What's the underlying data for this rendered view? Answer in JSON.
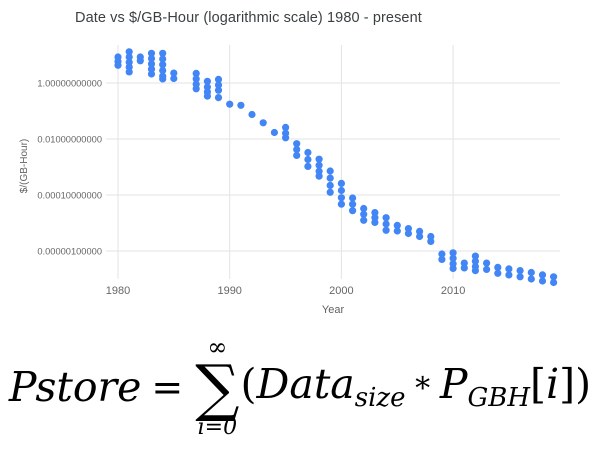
{
  "colors": {
    "background": "#ffffff",
    "title_text": "#3c4043",
    "axis_title_text": "#616161",
    "tick_text": "#666666",
    "gridline": "#e3e3e3",
    "point": "#4285f4"
  },
  "chart_data": {
    "type": "scatter",
    "title": "Date vs $/GB-Hour (logarithmic scale) 1980 - present",
    "xlabel": "Year",
    "ylabel": "$/(GB-Hour)",
    "y_scale": "log",
    "grid": true,
    "legend": "none",
    "xlim": [
      1979,
      2020
    ],
    "ylim": [
      7e-08,
      20
    ],
    "x_ticks": [
      1980,
      1990,
      2000,
      2010
    ],
    "x_tick_labels": [
      "1980",
      "1990",
      "2000",
      "2010"
    ],
    "y_ticks": [
      1,
      0.01,
      0.0001,
      1e-06
    ],
    "y_tick_labels": [
      "1.00000000000",
      "0.01000000000",
      "0.00010000000",
      "0.00000100000"
    ],
    "series": [
      {
        "name": "$/(GB-Hour)",
        "color": "#4285f4",
        "points": [
          {
            "year": 1980,
            "values": [
              8.5,
              5.9,
              4.3
            ]
          },
          {
            "year": 1981,
            "values": [
              13,
              8.5,
              5.5,
              3.7,
              2.5
            ]
          },
          {
            "year": 1982,
            "values": [
              8.5,
              6.2
            ]
          },
          {
            "year": 1983,
            "values": [
              11.5,
              7.5,
              4.8,
              3.1,
              2.1
            ]
          },
          {
            "year": 1984,
            "values": [
              11.5,
              7.2,
              4.5,
              2.8,
              1.75,
              1.4
            ]
          },
          {
            "year": 1985,
            "values": [
              2.25,
              1.45
            ]
          },
          {
            "year": 1987,
            "values": [
              2.2,
              1.4,
              0.9,
              0.62
            ]
          },
          {
            "year": 1988,
            "values": [
              1.15,
              0.72,
              0.48,
              0.34
            ]
          },
          {
            "year": 1989,
            "values": [
              1.35,
              0.85,
              0.55,
              0.3
            ]
          },
          {
            "year": 1990,
            "values": [
              0.175
            ]
          },
          {
            "year": 1991,
            "values": [
              0.16
            ]
          },
          {
            "year": 1992,
            "values": [
              0.075
            ]
          },
          {
            "year": 1993,
            "values": [
              0.038
            ]
          },
          {
            "year": 1994,
            "values": [
              0.017
            ]
          },
          {
            "year": 1995,
            "values": [
              0.026,
              0.016,
              0.011
            ]
          },
          {
            "year": 1996,
            "values": [
              0.0068,
              0.0042,
              0.0026
            ]
          },
          {
            "year": 1997,
            "values": [
              0.0033,
              0.00185,
              0.00105
            ]
          },
          {
            "year": 1998,
            "values": [
              0.0019,
              0.00115,
              0.0007,
              0.00047
            ]
          },
          {
            "year": 1999,
            "values": [
              0.00072,
              0.0004,
              0.00022,
              0.000125
            ]
          },
          {
            "year": 2000,
            "values": [
              0.00026,
              0.000145,
              8e-05,
              4.7e-05
            ]
          },
          {
            "year": 2001,
            "values": [
              7.8e-05,
              4.7e-05,
              2.75e-05
            ]
          },
          {
            "year": 2002,
            "values": [
              3.3e-05,
              2.05e-05,
              1.25e-05
            ]
          },
          {
            "year": 2003,
            "values": [
              2.35e-05,
              1.55e-05,
              1.05e-05
            ]
          },
          {
            "year": 2004,
            "values": [
              1.55e-05,
              9.2e-06,
              5.5e-06
            ]
          },
          {
            "year": 2005,
            "values": [
              8.2e-06,
              5.2e-06
            ]
          },
          {
            "year": 2006,
            "values": [
              6.3e-06,
              4.2e-06
            ]
          },
          {
            "year": 2007,
            "values": [
              5e-06,
              3.3e-06
            ]
          },
          {
            "year": 2008,
            "values": [
              3.3e-06,
              2.2e-06
            ]
          },
          {
            "year": 2009,
            "values": [
              7.8e-07,
              5e-07
            ]
          },
          {
            "year": 2010,
            "values": [
              8.6e-07,
              5.5e-07,
              3.5e-07,
              2.4e-07
            ]
          },
          {
            "year": 2011,
            "values": [
              3.7e-07,
              2.5e-07
            ]
          },
          {
            "year": 2012,
            "values": [
              6.6e-07,
              4.3e-07,
              2.8e-07,
              2e-07
            ]
          },
          {
            "year": 2013,
            "values": [
              3.7e-07,
              2.2e-07
            ]
          },
          {
            "year": 2014,
            "values": [
              2.6e-07,
              1.6e-07
            ]
          },
          {
            "year": 2015,
            "values": [
              2.3e-07,
              1.4e-07
            ]
          },
          {
            "year": 2016,
            "values": [
              2e-07,
              1.2e-07
            ]
          },
          {
            "year": 2017,
            "values": [
              1.7e-07,
              1e-07
            ]
          },
          {
            "year": 2018,
            "values": [
              1.4e-07,
              8.5e-08
            ]
          },
          {
            "year": 2019,
            "values": [
              1.2e-07,
              7.5e-08
            ]
          }
        ]
      }
    ]
  },
  "formula": {
    "lhs": "Pstore",
    "equals": "=",
    "sum_upper": "∞",
    "sum_symbol": "∑",
    "sum_lower": "i=0",
    "open_paren": "(",
    "term1": "Data",
    "term1_sub": "size",
    "operator": "∗",
    "term2": "P",
    "term2_sub": "GBH",
    "index_open": "[",
    "index": "i",
    "index_close": "]",
    "close_paren": ")"
  }
}
